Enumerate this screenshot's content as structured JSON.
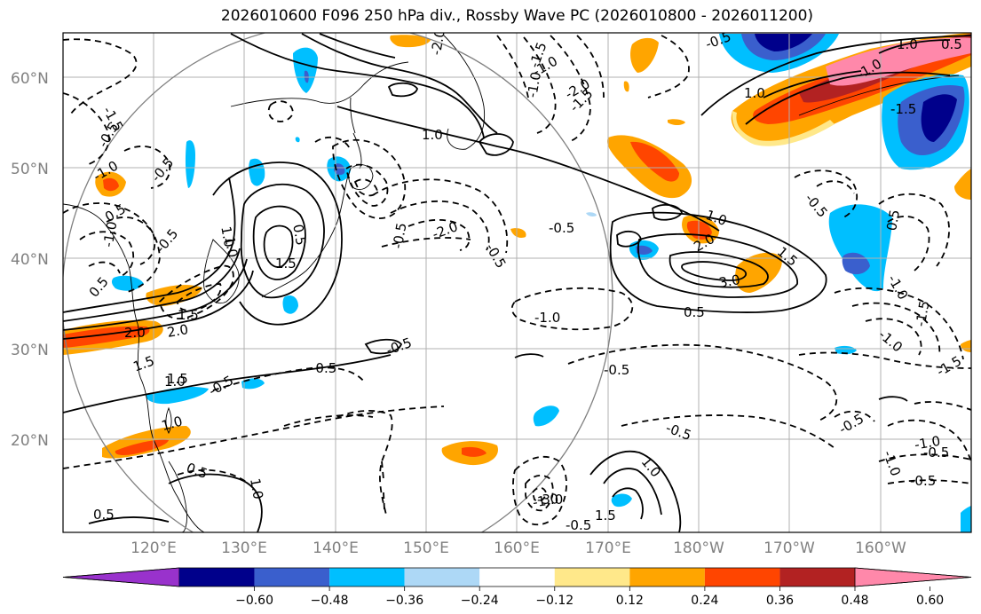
{
  "title": "2026010600 F096 250 hPa div., Rossby Wave PC (2026010800 - 2026011200)",
  "lat_labels": [
    "60°N",
    "50°N",
    "40°N",
    "30°N",
    "20°N"
  ],
  "lon_labels": [
    "120°E",
    "130°E",
    "140°E",
    "150°E",
    "160°E",
    "170°E",
    "180°W",
    "170°W",
    "160°W"
  ],
  "colorbar": {
    "ticks": [
      "−0.60",
      "−0.48",
      "−0.36",
      "−0.24",
      "−0.12",
      "0.12",
      "0.24",
      "0.36",
      "0.48",
      "0.60"
    ],
    "colors": [
      "#9932cc",
      "#00008b",
      "#3a5fcd",
      "#00bfff",
      "#add8f6",
      "#ffffff",
      "#ffe88a",
      "#ffa500",
      "#ff4500",
      "#b22222",
      "#ff88aa"
    ]
  },
  "contour_labels": [
    "-2.0",
    "1.0",
    "-1.5",
    "-2.0",
    "-1.5",
    "1.0",
    "-0.5",
    "-1.0",
    "-0.5",
    "0.5",
    "1.0",
    "0.5",
    "-2.0",
    "-0.5",
    "-0.5",
    "-1.0",
    "-0.5",
    "1.5",
    "2.0",
    "-0.5",
    "1.0",
    "2.0",
    "3.0",
    "0.5",
    "1.5",
    "-1.0",
    "-0.5",
    "-0.5",
    "1.5",
    "-0.5",
    "-1.5",
    "1.0",
    "-0.5",
    "-1.0",
    "1.0",
    "0.5",
    "-1.0",
    "0.5",
    "-1.0",
    "1.0",
    "0.5",
    "-0.5",
    "-1.0",
    "-1.5",
    "-0.5",
    "-0.5",
    "-1.5",
    "-1.0",
    "-0.5",
    "-1.0",
    "1.0",
    "-1.5",
    "2.0",
    "1.5",
    "1.0",
    "0.5",
    "-0.5",
    "1.5",
    "-0.5",
    "-1.0",
    "-1.0",
    "-3.0",
    "-0.5",
    "1.5",
    "0.5",
    "1.0"
  ]
}
